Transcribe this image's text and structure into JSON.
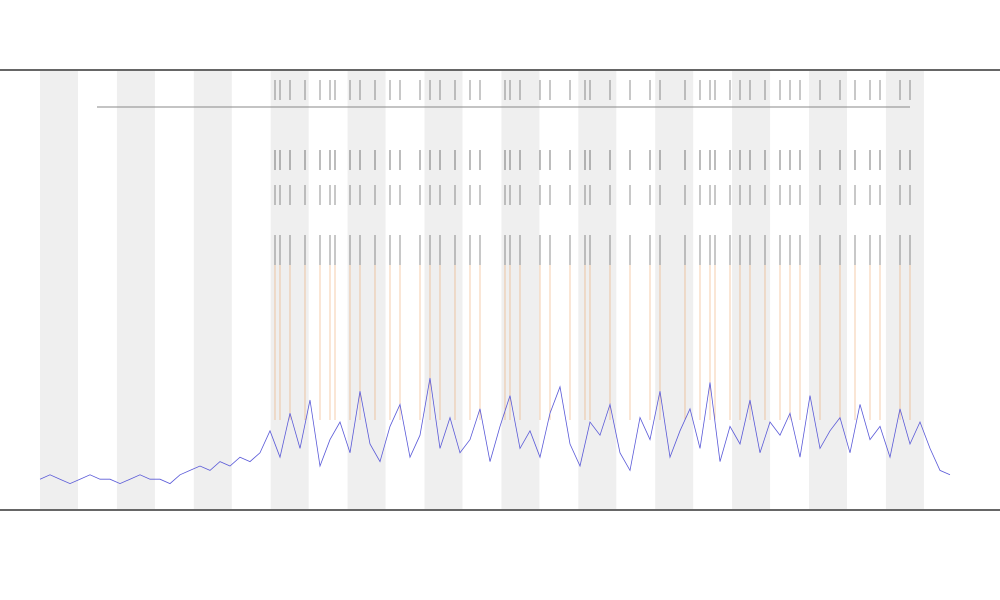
{
  "chart_data": {
    "type": "line",
    "x": [
      0,
      1,
      2,
      3,
      4,
      5,
      6,
      7,
      8,
      9,
      10,
      11,
      12,
      13,
      14,
      15,
      16,
      17,
      18,
      19,
      20,
      21,
      22,
      23,
      24,
      25,
      26,
      27,
      28,
      29,
      30,
      31,
      32,
      33,
      34,
      35,
      36,
      37,
      38,
      39,
      40,
      41,
      42,
      43,
      44,
      45,
      46,
      47,
      48,
      49,
      50,
      51,
      52,
      53,
      54,
      55,
      56,
      57,
      58,
      59,
      60,
      61,
      62,
      63,
      64,
      65,
      66,
      67,
      68,
      69,
      70,
      71,
      72,
      73,
      74,
      75,
      76,
      77,
      78,
      79,
      80,
      81,
      82,
      83,
      84,
      85,
      86,
      87,
      88,
      89,
      90,
      91
    ],
    "series": [
      {
        "color": "#5a5ad8",
        "values": [
          7,
          8,
          7,
          6,
          7,
          8,
          7,
          7,
          6,
          7,
          8,
          7,
          7,
          6,
          8,
          9,
          10,
          9,
          11,
          10,
          12,
          11,
          13,
          18,
          12,
          22,
          14,
          25,
          10,
          16,
          20,
          13,
          27,
          15,
          11,
          19,
          24,
          12,
          17,
          30,
          14,
          21,
          13,
          16,
          23,
          11,
          19,
          26,
          14,
          18,
          12,
          22,
          28,
          15,
          10,
          20,
          17,
          24,
          13,
          9,
          21,
          16,
          27,
          12,
          18,
          23,
          14,
          29,
          11,
          19,
          15,
          25,
          13,
          20,
          17,
          22,
          12,
          26,
          14,
          18,
          21,
          13,
          24,
          16,
          19,
          12,
          23,
          15,
          20,
          14,
          9,
          8
        ]
      }
    ],
    "events": {
      "color": "#222222",
      "spike_color": "#e8893a",
      "x": [
        23.5,
        24,
        25,
        26.5,
        28,
        29,
        29.5,
        31,
        32,
        33.5,
        35,
        36,
        38,
        39,
        40,
        41.5,
        43,
        44,
        46.5,
        47,
        48,
        50,
        51,
        53,
        54.5,
        55,
        57,
        59,
        61,
        62,
        64.5,
        66,
        67,
        67.5,
        69,
        70,
        71,
        72.5,
        74,
        75,
        76,
        78,
        80,
        81.5,
        83,
        84,
        86,
        87
      ]
    },
    "xlim": [
      0,
      92
    ],
    "ylim": [
      0,
      100
    ]
  }
}
